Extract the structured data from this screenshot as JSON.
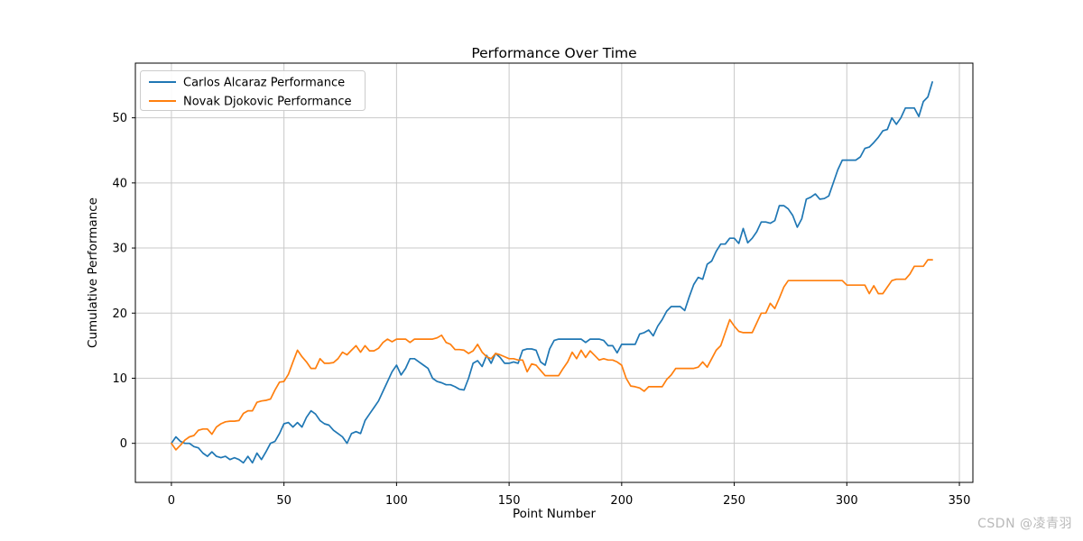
{
  "watermark": "CSDN @凌青羽",
  "chart_data": {
    "type": "line",
    "title": "Performance Over Time",
    "xlabel": "Point Number",
    "ylabel": "Cumulative Performance",
    "xlim": [
      -16,
      356
    ],
    "ylim": [
      -6,
      58.4
    ],
    "xticks": [
      0,
      50,
      100,
      150,
      200,
      250,
      300,
      350
    ],
    "yticks": [
      0,
      10,
      20,
      30,
      40,
      50
    ],
    "grid": true,
    "grid_color": "#c9c9c9",
    "legend_position": "upper left",
    "x_start": 0,
    "x_step": 2,
    "series": [
      {
        "name": "Carlos Alcaraz Performance",
        "color": "#1f77b4",
        "values": [
          0,
          1,
          0.3,
          0,
          0,
          -0.5,
          -0.7,
          -1.5,
          -2,
          -1.3,
          -2,
          -2.2,
          -2,
          -2.5,
          -2.2,
          -2.5,
          -3,
          -2,
          -3,
          -1.5,
          -2.5,
          -1.3,
          0,
          0.3,
          1.5,
          3,
          3.2,
          2.5,
          3.2,
          2.5,
          4,
          5,
          4.5,
          3.5,
          3,
          2.8,
          2,
          1.5,
          1,
          0,
          1.5,
          1.8,
          1.5,
          3.5,
          4.5,
          5.5,
          6.5,
          8,
          9.5,
          11,
          12,
          10.5,
          11.5,
          13,
          13,
          12.5,
          12,
          11.5,
          10,
          9.5,
          9.3,
          9,
          9,
          8.7,
          8.3,
          8.2,
          10,
          12.3,
          12.7,
          11.8,
          13.5,
          12.3,
          13.8,
          13.2,
          12.3,
          12.3,
          12.5,
          12.3,
          14.3,
          14.5,
          14.5,
          14.3,
          12.5,
          12,
          14.5,
          15.8,
          16,
          16,
          16,
          16,
          16,
          16,
          15.5,
          16,
          16,
          16,
          15.8,
          15,
          15,
          13.9,
          15.2,
          15.2,
          15.2,
          15.2,
          16.8,
          17,
          17.4,
          16.5,
          18,
          19,
          20.3,
          21,
          21,
          21,
          20.4,
          22.5,
          24.4,
          25.5,
          25.2,
          27.5,
          28,
          29.5,
          30.6,
          30.6,
          31.5,
          31.5,
          30.7,
          33,
          30.8,
          31.5,
          32.5,
          34,
          34,
          33.8,
          34.2,
          36.5,
          36.5,
          36,
          35,
          33.2,
          34.5,
          37.5,
          37.8,
          38.3,
          37.5,
          37.6,
          38,
          40,
          42,
          43.5,
          43.5,
          43.5,
          43.5,
          44,
          45.3,
          45.5,
          46.2,
          47,
          48,
          48.2,
          50,
          49,
          50,
          51.5,
          51.5,
          51.5,
          50.2,
          52.5,
          53.2,
          55.5
        ]
      },
      {
        "name": "Novak Djokovic Performance",
        "color": "#ff7f0e",
        "values": [
          0,
          -1,
          -0.3,
          0.5,
          1,
          1.2,
          2,
          2.2,
          2.2,
          1.4,
          2.5,
          3,
          3.3,
          3.4,
          3.4,
          3.5,
          4.6,
          5,
          5,
          6.3,
          6.5,
          6.6,
          6.8,
          8.2,
          9.4,
          9.5,
          10.6,
          12.5,
          14.3,
          13.3,
          12.5,
          11.5,
          11.5,
          13,
          12.3,
          12.3,
          12.4,
          13,
          14,
          13.6,
          14.3,
          15,
          14,
          15,
          14.2,
          14.2,
          14.6,
          15.5,
          16,
          15.6,
          16,
          16,
          16,
          15.5,
          16,
          16,
          16,
          16,
          16,
          16.2,
          16.6,
          15.5,
          15.2,
          14.4,
          14.4,
          14.3,
          13.8,
          14.2,
          15.2,
          14,
          13.3,
          13,
          13.8,
          13.6,
          13.3,
          13,
          13,
          12.8,
          12.8,
          11,
          12.2,
          12,
          11.2,
          10.4,
          10.4,
          10.4,
          10.4,
          11.5,
          12.5,
          14,
          13,
          14.3,
          13.2,
          14.2,
          13.5,
          12.8,
          13,
          12.8,
          12.8,
          12.5,
          12,
          10,
          8.8,
          8.7,
          8.5,
          8,
          8.7,
          8.7,
          8.7,
          8.7,
          9.8,
          10.5,
          11.5,
          11.5,
          11.5,
          11.5,
          11.5,
          11.7,
          12.5,
          11.7,
          13,
          14.3,
          15,
          17,
          19,
          18,
          17.2,
          17,
          17,
          17,
          18.5,
          20,
          20,
          21.5,
          20.7,
          22.3,
          24,
          25,
          25,
          25,
          25,
          25,
          25,
          25,
          25,
          25,
          25,
          25,
          25,
          25,
          24.3,
          24.3,
          24.3,
          24.3,
          24.3,
          23,
          24.2,
          23,
          23,
          24,
          25,
          25.2,
          25.2,
          25.2,
          26,
          27.2,
          27.2,
          27.2,
          28.2,
          28.2
        ]
      }
    ]
  }
}
